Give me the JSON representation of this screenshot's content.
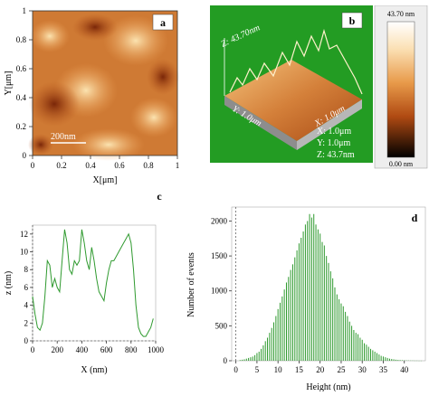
{
  "panel_a": {
    "letter": "a",
    "xlabel": "X[μm]",
    "ylabel": "Y[μm]",
    "x_ticks": [
      "0",
      "0.2",
      "0.4",
      "0.6",
      "0.8",
      "1"
    ],
    "y_ticks": [
      "0",
      "0.2",
      "0.4",
      "0.6",
      "0.8",
      "1"
    ],
    "scale_bar": "200nm"
  },
  "panel_b": {
    "letter": "b",
    "z_axis_label": "Z: 43.70nm",
    "y_axis_label": "Y: 1.0μm",
    "x_axis_label": "X: 1.0μm",
    "dims": [
      "X: 1.0μm",
      "Y: 1.0μm",
      "Z: 43.7nm"
    ],
    "colorbar_top": "43.70 nm",
    "colorbar_bottom": "0.00 nm"
  },
  "chart_data": [
    {
      "panel": "c",
      "type": "line",
      "letter": "c",
      "title": "",
      "xlabel": "X (nm)",
      "ylabel": "z (nm)",
      "xlim": [
        0,
        1000
      ],
      "ylim": [
        0,
        13
      ],
      "x_ticks": [
        "0",
        "200",
        "400",
        "600",
        "800",
        "1000"
      ],
      "y_ticks": [
        "0",
        "2",
        "4",
        "6",
        "8",
        "10",
        "12"
      ],
      "series": [
        {
          "x": [
            0,
            20,
            40,
            60,
            80,
            100,
            120,
            140,
            160,
            180,
            200,
            220,
            240,
            260,
            280,
            300,
            320,
            340,
            360,
            380,
            400,
            420,
            440,
            460,
            480,
            500,
            520,
            540,
            560,
            580,
            600,
            620,
            640,
            660,
            680,
            700,
            720,
            740,
            760,
            780,
            800,
            820,
            840,
            860,
            880,
            900,
            920,
            940,
            960,
            980
          ],
          "y": [
            5,
            3,
            1.5,
            1.2,
            2,
            5,
            9,
            8.5,
            6,
            7,
            6,
            5.5,
            9,
            12.5,
            11,
            8,
            7.5,
            9,
            8.5,
            9,
            12.5,
            11,
            9,
            8,
            10.5,
            9,
            7,
            5.5,
            5,
            4.5,
            6.5,
            8,
            9,
            9,
            9.5,
            10,
            10.5,
            11,
            11.5,
            12,
            11,
            8,
            4,
            1.5,
            0.8,
            0.5,
            0.5,
            1,
            1.5,
            2.5
          ]
        }
      ]
    },
    {
      "panel": "d",
      "type": "bar",
      "letter": "d",
      "title": "",
      "xlabel": "Height (nm)",
      "ylabel": "Number of events",
      "xlim": [
        -1,
        45
      ],
      "ylim": [
        0,
        2200
      ],
      "x_ticks": [
        "0",
        "5",
        "10",
        "15",
        "20",
        "25",
        "30",
        "35",
        "40"
      ],
      "y_ticks": [
        "0",
        "500",
        "1000",
        "1500",
        "2000"
      ],
      "x": [
        1,
        1.5,
        2,
        2.5,
        3,
        3.5,
        4,
        4.5,
        5,
        5.5,
        6,
        6.5,
        7,
        7.5,
        8,
        8.5,
        9,
        9.5,
        10,
        10.5,
        11,
        11.5,
        12,
        12.5,
        13,
        13.5,
        14,
        14.5,
        15,
        15.5,
        16,
        16.5,
        17,
        17.5,
        18,
        18.5,
        19,
        19.5,
        20,
        20.5,
        21,
        21.5,
        22,
        22.5,
        23,
        23.5,
        24,
        24.5,
        25,
        25.5,
        26,
        26.5,
        27,
        27.5,
        28,
        28.5,
        29,
        29.5,
        30,
        30.5,
        31,
        31.5,
        32,
        32.5,
        33,
        33.5,
        34,
        34.5,
        35,
        35.5,
        36,
        36.5,
        37,
        37.5,
        38,
        38.5,
        39,
        39.5,
        40,
        40.5,
        41,
        41.5,
        42,
        42.5,
        43,
        43.5,
        44
      ],
      "values": [
        10,
        15,
        20,
        30,
        40,
        50,
        60,
        80,
        110,
        130,
        170,
        220,
        280,
        330,
        400,
        470,
        550,
        640,
        740,
        830,
        920,
        1020,
        1120,
        1200,
        1300,
        1380,
        1480,
        1580,
        1680,
        1760,
        1850,
        1950,
        2000,
        2100,
        2050,
        2100,
        1950,
        1880,
        1820,
        1700,
        1650,
        1500,
        1400,
        1280,
        1180,
        1050,
        950,
        880,
        820,
        780,
        700,
        640,
        560,
        500,
        440,
        400,
        380,
        330,
        300,
        250,
        230,
        200,
        170,
        150,
        130,
        110,
        90,
        70,
        60,
        50,
        40,
        30,
        25,
        20,
        15,
        12,
        10,
        8,
        6,
        5,
        4,
        3,
        3,
        2,
        2,
        1,
        1
      ]
    }
  ]
}
